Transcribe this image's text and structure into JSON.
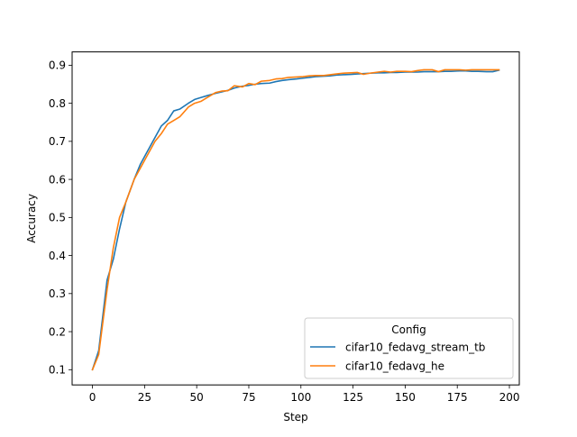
{
  "chart_data": {
    "type": "line",
    "title": "",
    "xlabel": "Step",
    "ylabel": "Accuracy",
    "xlim": [
      -9.75,
      204.75
    ],
    "ylim": [
      0.06,
      0.935
    ],
    "x_ticks": [
      0,
      25,
      50,
      75,
      100,
      125,
      150,
      175,
      200
    ],
    "y_ticks": [
      0.1,
      0.2,
      0.3,
      0.4,
      0.5,
      0.6,
      0.7,
      0.8,
      0.9
    ],
    "grid": false,
    "legend": {
      "title": "Config",
      "placement": "lower-right"
    },
    "series": [
      {
        "name": "cifar10_fedavg_stream_tb",
        "color": "#1f77b4",
        "x": [
          0,
          3,
          7,
          10,
          13,
          16,
          20,
          23,
          26,
          30,
          33,
          36,
          39,
          42,
          46,
          49,
          52,
          55,
          59,
          62,
          65,
          68,
          72,
          75,
          78,
          81,
          85,
          88,
          91,
          94,
          98,
          101,
          104,
          107,
          111,
          114,
          117,
          120,
          124,
          127,
          130,
          133,
          137,
          140,
          143,
          146,
          150,
          153,
          156,
          159,
          163,
          166,
          169,
          172,
          176,
          179,
          182,
          185,
          189,
          192,
          195
        ],
        "y": [
          0.1,
          0.15,
          0.335,
          0.39,
          0.47,
          0.54,
          0.6,
          0.64,
          0.67,
          0.71,
          0.74,
          0.755,
          0.78,
          0.785,
          0.8,
          0.81,
          0.815,
          0.82,
          0.826,
          0.83,
          0.834,
          0.84,
          0.845,
          0.847,
          0.85,
          0.852,
          0.853,
          0.857,
          0.86,
          0.862,
          0.864,
          0.866,
          0.868,
          0.87,
          0.871,
          0.872,
          0.874,
          0.875,
          0.876,
          0.877,
          0.878,
          0.879,
          0.88,
          0.88,
          0.881,
          0.881,
          0.882,
          0.882,
          0.882,
          0.883,
          0.883,
          0.883,
          0.884,
          0.884,
          0.885,
          0.885,
          0.884,
          0.884,
          0.883,
          0.883,
          0.887
        ]
      },
      {
        "name": "cifar10_fedavg_he",
        "color": "#ff7f0e",
        "x": [
          0,
          3,
          7,
          10,
          13,
          16,
          20,
          23,
          26,
          30,
          33,
          36,
          39,
          42,
          46,
          49,
          52,
          55,
          59,
          62,
          65,
          68,
          72,
          75,
          78,
          81,
          85,
          88,
          91,
          94,
          98,
          101,
          104,
          107,
          111,
          114,
          117,
          120,
          124,
          127,
          130,
          133,
          137,
          140,
          143,
          146,
          150,
          153,
          156,
          159,
          163,
          166,
          169,
          172,
          176,
          179,
          182,
          185,
          189,
          192,
          195
        ],
        "y": [
          0.1,
          0.14,
          0.31,
          0.42,
          0.5,
          0.54,
          0.6,
          0.63,
          0.66,
          0.7,
          0.72,
          0.745,
          0.755,
          0.765,
          0.79,
          0.8,
          0.805,
          0.815,
          0.828,
          0.832,
          0.833,
          0.846,
          0.843,
          0.852,
          0.849,
          0.858,
          0.86,
          0.864,
          0.865,
          0.868,
          0.869,
          0.87,
          0.872,
          0.873,
          0.873,
          0.875,
          0.877,
          0.879,
          0.88,
          0.881,
          0.876,
          0.879,
          0.882,
          0.884,
          0.882,
          0.884,
          0.884,
          0.883,
          0.886,
          0.888,
          0.888,
          0.883,
          0.888,
          0.888,
          0.888,
          0.887,
          0.888,
          0.888,
          0.888,
          0.888,
          0.888
        ]
      }
    ]
  }
}
